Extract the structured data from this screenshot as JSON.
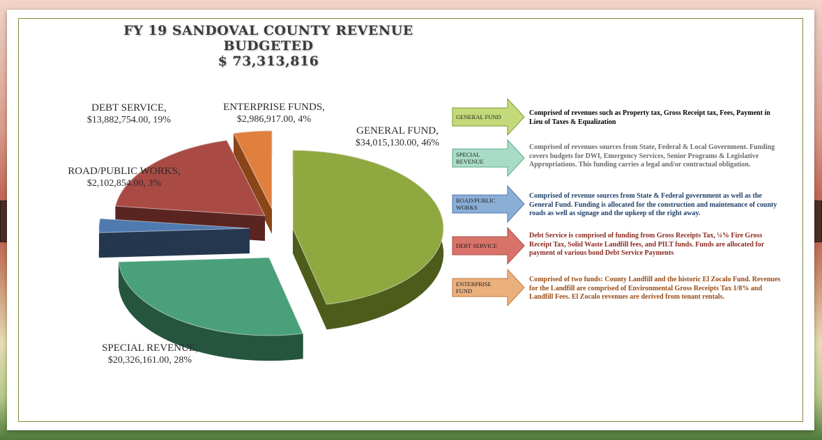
{
  "title_lines": [
    "FY 19 SANDOVAL COUNTY REVENUE",
    "BUDGETED",
    "$ 73,313,816"
  ],
  "chart_data": {
    "type": "pie",
    "slices": [
      {
        "name": "GENERAL FUND",
        "value": 34015130.0,
        "value_label": "$34,015,130.00",
        "percent": "46%",
        "color": "#8fa840",
        "dark": "#4d5c1b"
      },
      {
        "name": "SPECIAL REVENUE",
        "value": 20326161.0,
        "value_label": "$20,326,161.00",
        "percent": "28%",
        "color": "#4aa07a",
        "dark": "#25553e"
      },
      {
        "name": "ROAD/PUBLIC WORKS",
        "value": 2102854.0,
        "value_label": "$2,102,854.00",
        "percent": "3%",
        "color": "#4f7ab0",
        "dark": "#24374f"
      },
      {
        "name": "DEBT SERVICE",
        "value": 13882754.0,
        "value_label": "$13,882,754.00",
        "percent": "19%",
        "color": "#a94b44",
        "dark": "#5a2420"
      },
      {
        "name": "ENTERPRISE FUNDS",
        "value": 2986917.0,
        "value_label": "$2,986,917.00",
        "percent": "4%",
        "color": "#e07f3e",
        "dark": "#8a4518"
      }
    ]
  },
  "pie_labels": [
    {
      "name": "GENERAL FUND,",
      "value": "$34,015,130.00, 46%"
    },
    {
      "name": "SPECIAL REVENUE,",
      "value": "$20,326,161.00, 28%"
    },
    {
      "name": "ROAD/PUBLIC WORKS,",
      "value": "$2,102,854.00, 3%"
    },
    {
      "name": "DEBT SERVICE,",
      "value": "$13,882,754.00, 19%"
    },
    {
      "name": "ENTERPRISE FUNDS,",
      "value": "$2,986,917.00, 4%"
    }
  ],
  "legend": [
    {
      "label_lines": [
        "GENERAL FUND"
      ],
      "color": "#c3d97a",
      "stroke": "#7f9a35",
      "text_color": "#000000",
      "description": "Comprised of revenues such as Property tax, Gross Receipt tax, Fees, Payment in Lieu of Taxes & Equalization"
    },
    {
      "label_lines": [
        "SPECIAL",
        "REVENUE"
      ],
      "color": "#a9dcc7",
      "stroke": "#5aa88a",
      "text_color": "#6a6a6a",
      "description": "Comprised of revenues sources from State, Federal & Local Government. Funding covers budgets for DWI, Emergency Services, Senior Programs & Legislative Appropriations.  This funding carries a legal and/or contractual obligation."
    },
    {
      "label_lines": [
        "ROAD/PUBLIC",
        "WORKS"
      ],
      "color": "#8aaed6",
      "stroke": "#4f7ab0",
      "text_color": "#1f3f6a",
      "description": "Comprised of revenue sources from State & Federal government as well as the General Fund.  Funding is allocated for the construction and maintenance of county roads as well as signage and the upkeep of the right away."
    },
    {
      "label_lines": [
        "DEBT SERVICE"
      ],
      "color": "#d9736a",
      "stroke": "#a94b44",
      "text_color": "#8b2a20",
      "description": "Debt Service is comprised of funding from Gross Receipts Tax, ¼% Fire Gross Receipt Tax, Solid Waste Landfill fees, and PILT funds. Funds are allocated for payment of various bond Debt Service Payments"
    },
    {
      "label_lines": [
        "ENTERPRISE",
        "FUND"
      ],
      "color": "#eab07e",
      "stroke": "#c07a3e",
      "text_color": "#9a4a12",
      "description": "Comprised of two funds: County Landfill and the historic El Zocalo Fund. Revenues for the Landfill are comprised of Environmental Gross Receipts Tax 1/8% and Landfill Fees.  El Zocalo revenues are derived from tenant rentals."
    }
  ]
}
